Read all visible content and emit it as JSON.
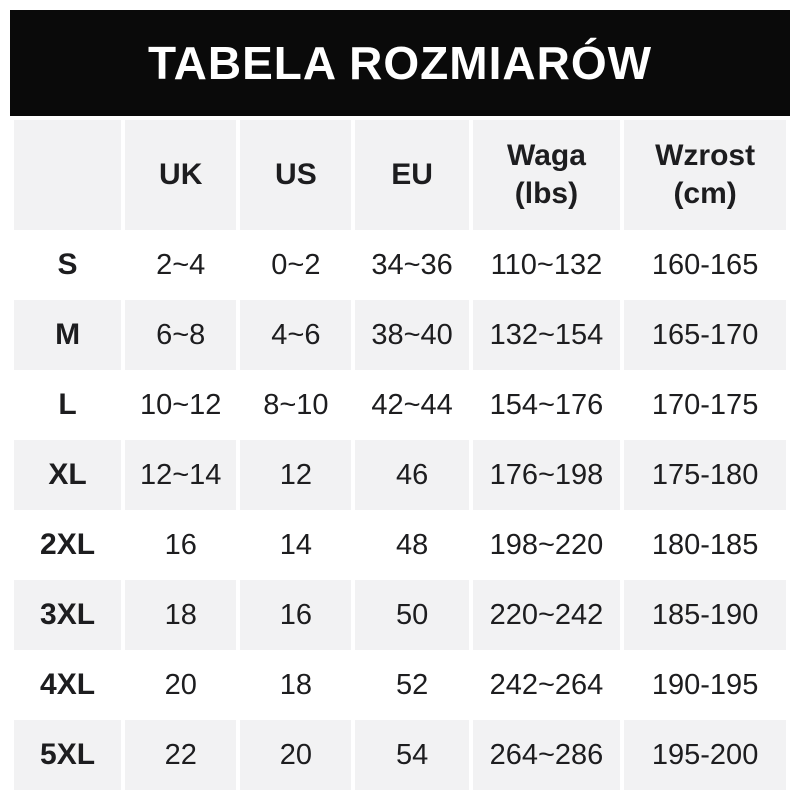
{
  "title": "TABELA ROZMIARÓW",
  "colors": {
    "banner_bg": "#0a0a0a",
    "banner_text": "#ffffff",
    "row_stripe": "#f2f2f3",
    "row_plain": "#ffffff",
    "text": "#1d1d1f"
  },
  "chart_data": {
    "type": "table",
    "title": "TABELA ROZMIARÓW",
    "columns": [
      {
        "label": "",
        "sub": ""
      },
      {
        "label": "UK",
        "sub": ""
      },
      {
        "label": "US",
        "sub": ""
      },
      {
        "label": "EU",
        "sub": ""
      },
      {
        "label": "Waga",
        "sub": "(lbs)"
      },
      {
        "label": "Wzrost",
        "sub": "(cm)"
      }
    ],
    "rows": [
      {
        "size": "S",
        "uk": "2~4",
        "us": "0~2",
        "eu": "34~36",
        "waga": "110~132",
        "wzrost": "160-165"
      },
      {
        "size": "M",
        "uk": "6~8",
        "us": "4~6",
        "eu": "38~40",
        "waga": "132~154",
        "wzrost": "165-170"
      },
      {
        "size": "L",
        "uk": "10~12",
        "us": "8~10",
        "eu": "42~44",
        "waga": "154~176",
        "wzrost": "170-175"
      },
      {
        "size": "XL",
        "uk": "12~14",
        "us": "12",
        "eu": "46",
        "waga": "176~198",
        "wzrost": "175-180"
      },
      {
        "size": "2XL",
        "uk": "16",
        "us": "14",
        "eu": "48",
        "waga": "198~220",
        "wzrost": "180-185"
      },
      {
        "size": "3XL",
        "uk": "18",
        "us": "16",
        "eu": "50",
        "waga": "220~242",
        "wzrost": "185-190"
      },
      {
        "size": "4XL",
        "uk": "20",
        "us": "18",
        "eu": "52",
        "waga": "242~264",
        "wzrost": "190-195"
      },
      {
        "size": "5XL",
        "uk": "22",
        "us": "20",
        "eu": "54",
        "waga": "264~286",
        "wzrost": "195-200"
      }
    ]
  }
}
